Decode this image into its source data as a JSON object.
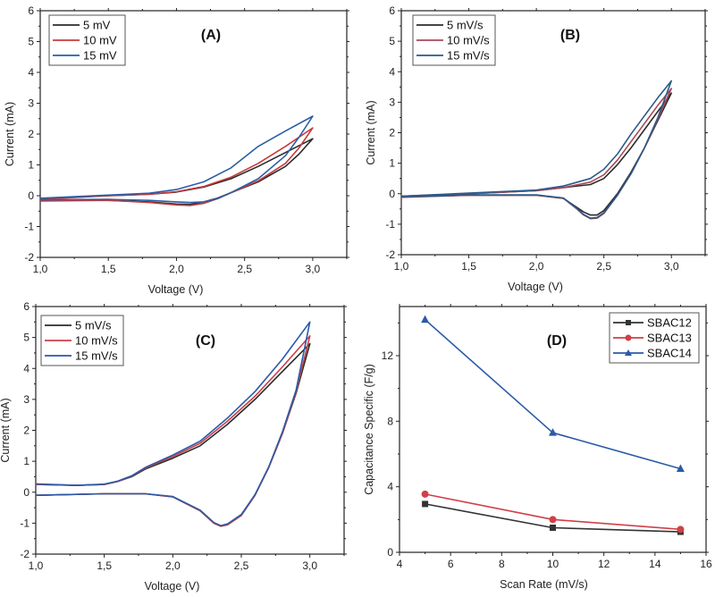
{
  "chart_data": [
    {
      "id": "A",
      "type": "line",
      "panel_label": "(A)",
      "xlabel": "Voltage (V)",
      "ylabel": "Current (mA)",
      "xlim": [
        1.0,
        3.25
      ],
      "ylim": [
        -2,
        6
      ],
      "xticks": [
        1.0,
        1.5,
        2.0,
        2.5,
        3.0
      ],
      "xtick_labels": [
        "1,0",
        "1,5",
        "2,0",
        "2,5",
        "3,0"
      ],
      "yticks": [
        -2,
        -1,
        0,
        1,
        2,
        3,
        4,
        5,
        6
      ],
      "ytick_labels": [
        "-2",
        "-1",
        "0",
        "1",
        "2",
        "3",
        "4",
        "5",
        "6"
      ],
      "legend_position": "top-left",
      "series": [
        {
          "name": "5 mV",
          "color": "#2b2b2b",
          "x": [
            1.0,
            1.5,
            1.8,
            2.0,
            2.2,
            2.4,
            2.6,
            2.8,
            3.0,
            2.9,
            2.8,
            2.6,
            2.4,
            2.3,
            2.2,
            2.1,
            2.0,
            1.8,
            1.5,
            1.0
          ],
          "y": [
            -0.1,
            0.0,
            0.05,
            0.12,
            0.28,
            0.55,
            0.95,
            1.4,
            1.85,
            1.35,
            0.95,
            0.45,
            0.1,
            -0.08,
            -0.2,
            -0.28,
            -0.27,
            -0.2,
            -0.15,
            -0.15
          ]
        },
        {
          "name": "10 mV",
          "color": "#c43c3c",
          "x": [
            1.0,
            1.5,
            1.8,
            2.0,
            2.2,
            2.4,
            2.6,
            2.8,
            3.0,
            2.9,
            2.8,
            2.6,
            2.4,
            2.3,
            2.2,
            2.1,
            2.0,
            1.8,
            1.5,
            1.0
          ],
          "y": [
            -0.12,
            0.0,
            0.05,
            0.13,
            0.3,
            0.6,
            1.05,
            1.6,
            2.2,
            1.55,
            1.05,
            0.48,
            0.1,
            -0.1,
            -0.25,
            -0.32,
            -0.3,
            -0.22,
            -0.15,
            -0.17
          ]
        },
        {
          "name": "15 mV",
          "color": "#2a5ea8",
          "x": [
            1.0,
            1.5,
            1.8,
            2.0,
            2.2,
            2.4,
            2.6,
            2.8,
            3.0,
            2.9,
            2.8,
            2.6,
            2.4,
            2.3,
            2.2,
            2.1,
            2.0,
            1.8,
            1.5,
            1.0
          ],
          "y": [
            -0.08,
            0.02,
            0.08,
            0.2,
            0.45,
            0.9,
            1.6,
            2.1,
            2.58,
            1.9,
            1.3,
            0.55,
            0.1,
            -0.1,
            -0.2,
            -0.22,
            -0.2,
            -0.15,
            -0.12,
            -0.13
          ]
        }
      ]
    },
    {
      "id": "B",
      "type": "line",
      "panel_label": "(B)",
      "xlabel": "Voltage (V)",
      "ylabel": "Current (mA)",
      "xlim": [
        1.0,
        3.25
      ],
      "ylim": [
        -2,
        6
      ],
      "xticks": [
        1.0,
        1.5,
        2.0,
        2.5,
        3.0
      ],
      "xtick_labels": [
        "1,0",
        "1,5",
        "2,0",
        "2,5",
        "3,0"
      ],
      "yticks": [
        -2,
        -1,
        0,
        1,
        2,
        3,
        4,
        5,
        6
      ],
      "ytick_labels": [
        "-2",
        "-1",
        "0",
        "1",
        "2",
        "3",
        "4",
        "5",
        "6"
      ],
      "legend_position": "top-left",
      "series": [
        {
          "name": "5 mV/s",
          "color": "#2b2b2b",
          "x": [
            1.0,
            1.5,
            2.0,
            2.2,
            2.4,
            2.5,
            2.6,
            2.7,
            2.8,
            2.9,
            3.0,
            2.9,
            2.8,
            2.7,
            2.6,
            2.5,
            2.45,
            2.4,
            2.35,
            2.3,
            2.2,
            2.0,
            1.5,
            1.0
          ],
          "y": [
            -0.08,
            0.0,
            0.1,
            0.2,
            0.3,
            0.5,
            0.95,
            1.5,
            2.1,
            2.7,
            3.3,
            2.4,
            1.5,
            0.7,
            0.0,
            -0.55,
            -0.7,
            -0.7,
            -0.6,
            -0.45,
            -0.15,
            -0.05,
            -0.05,
            -0.1
          ]
        },
        {
          "name": "10 mV/s",
          "color": "#a84a55",
          "x": [
            1.0,
            1.5,
            2.0,
            2.2,
            2.4,
            2.5,
            2.6,
            2.7,
            2.8,
            2.9,
            3.0,
            2.9,
            2.8,
            2.7,
            2.6,
            2.5,
            2.45,
            2.4,
            2.35,
            2.3,
            2.2,
            2.0,
            1.5,
            1.0
          ],
          "y": [
            -0.1,
            0.0,
            0.1,
            0.2,
            0.38,
            0.62,
            1.1,
            1.7,
            2.3,
            2.9,
            3.45,
            2.45,
            1.5,
            0.65,
            -0.05,
            -0.65,
            -0.8,
            -0.82,
            -0.7,
            -0.5,
            -0.15,
            -0.05,
            -0.05,
            -0.12
          ]
        },
        {
          "name": "15 mV/s",
          "color": "#2a5a8a",
          "x": [
            1.0,
            1.5,
            2.0,
            2.2,
            2.4,
            2.5,
            2.6,
            2.7,
            2.8,
            2.9,
            3.0,
            2.9,
            2.8,
            2.7,
            2.6,
            2.5,
            2.45,
            2.4,
            2.35,
            2.3,
            2.2,
            2.0,
            1.5,
            1.0
          ],
          "y": [
            -0.08,
            0.02,
            0.12,
            0.25,
            0.5,
            0.8,
            1.3,
            1.95,
            2.55,
            3.15,
            3.7,
            2.5,
            1.5,
            0.65,
            -0.05,
            -0.62,
            -0.78,
            -0.8,
            -0.68,
            -0.48,
            -0.14,
            -0.04,
            -0.04,
            -0.1
          ]
        }
      ]
    },
    {
      "id": "C",
      "type": "line",
      "panel_label": "(C)",
      "xlabel": "Voltage (V)",
      "ylabel": "Current (mA)",
      "xlim": [
        1.0,
        3.25
      ],
      "ylim": [
        -2,
        6
      ],
      "xticks": [
        1.0,
        1.5,
        2.0,
        2.5,
        3.0
      ],
      "xtick_labels": [
        "1,0",
        "1,5",
        "2,0",
        "2,5",
        "3,0"
      ],
      "yticks": [
        -2,
        -1,
        0,
        1,
        2,
        3,
        4,
        5,
        6
      ],
      "ytick_labels": [
        "-2",
        "-1",
        "0",
        "1",
        "2",
        "3",
        "4",
        "5",
        "6"
      ],
      "legend_position": "top-left",
      "series": [
        {
          "name": "5 mV/s",
          "color": "#2b2b2b",
          "x": [
            1.0,
            1.3,
            1.5,
            1.6,
            1.7,
            1.8,
            2.0,
            2.2,
            2.4,
            2.6,
            2.8,
            3.0,
            2.9,
            2.8,
            2.7,
            2.6,
            2.5,
            2.4,
            2.35,
            2.3,
            2.2,
            2.0,
            1.8,
            1.5,
            1.0
          ],
          "y": [
            0.25,
            0.22,
            0.25,
            0.35,
            0.5,
            0.75,
            1.1,
            1.5,
            2.2,
            3.0,
            3.9,
            4.8,
            3.2,
            1.9,
            0.8,
            -0.1,
            -0.75,
            -1.05,
            -1.1,
            -1.0,
            -0.6,
            -0.15,
            -0.05,
            -0.05,
            -0.1
          ]
        },
        {
          "name": "10 mV/s",
          "color": "#c8404a",
          "x": [
            1.0,
            1.3,
            1.5,
            1.6,
            1.7,
            1.8,
            2.0,
            2.2,
            2.4,
            2.6,
            2.8,
            3.0,
            2.9,
            2.8,
            2.7,
            2.6,
            2.5,
            2.4,
            2.35,
            2.3,
            2.2,
            2.0,
            1.8,
            1.5,
            1.0
          ],
          "y": [
            0.25,
            0.22,
            0.25,
            0.35,
            0.52,
            0.78,
            1.15,
            1.58,
            2.3,
            3.1,
            4.05,
            5.05,
            3.25,
            1.9,
            0.8,
            -0.1,
            -0.75,
            -1.05,
            -1.1,
            -1.0,
            -0.6,
            -0.15,
            -0.05,
            -0.05,
            -0.1
          ]
        },
        {
          "name": "15 mV/s",
          "color": "#2a5aa8",
          "x": [
            1.0,
            1.3,
            1.5,
            1.6,
            1.7,
            1.8,
            2.0,
            2.2,
            2.4,
            2.6,
            2.8,
            3.0,
            2.9,
            2.8,
            2.7,
            2.6,
            2.5,
            2.4,
            2.35,
            2.3,
            2.2,
            2.0,
            1.8,
            1.5,
            1.0
          ],
          "y": [
            0.27,
            0.22,
            0.26,
            0.36,
            0.53,
            0.8,
            1.2,
            1.65,
            2.4,
            3.25,
            4.3,
            5.5,
            3.3,
            1.95,
            0.82,
            -0.08,
            -0.72,
            -1.02,
            -1.08,
            -0.98,
            -0.58,
            -0.14,
            -0.05,
            -0.05,
            -0.1
          ]
        }
      ]
    },
    {
      "id": "D",
      "type": "line",
      "panel_label": "(D)",
      "xlabel": "Scan Rate (mV/s)",
      "ylabel": "Capacitance Specific (F/g)",
      "xlim": [
        4,
        16
      ],
      "ylim": [
        0,
        15
      ],
      "xticks": [
        4,
        6,
        8,
        10,
        12,
        14,
        16
      ],
      "xtick_labels": [
        "4",
        "6",
        "8",
        "10",
        "12",
        "14",
        "16"
      ],
      "yticks": [
        0,
        4,
        8,
        12
      ],
      "ytick_labels": [
        "0",
        "4",
        "8",
        "12"
      ],
      "legend_position": "top-right",
      "series": [
        {
          "name": "SBAC12",
          "color": "#333333",
          "marker": "square",
          "x": [
            5,
            10,
            15
          ],
          "y": [
            2.95,
            1.5,
            1.25
          ]
        },
        {
          "name": "SBAC13",
          "color": "#d04048",
          "marker": "circle",
          "x": [
            5,
            10,
            15
          ],
          "y": [
            3.55,
            2.0,
            1.4
          ]
        },
        {
          "name": "SBAC14",
          "color": "#2a5aa8",
          "marker": "triangle",
          "x": [
            5,
            10,
            15
          ],
          "y": [
            14.2,
            7.3,
            5.1
          ]
        }
      ]
    }
  ]
}
